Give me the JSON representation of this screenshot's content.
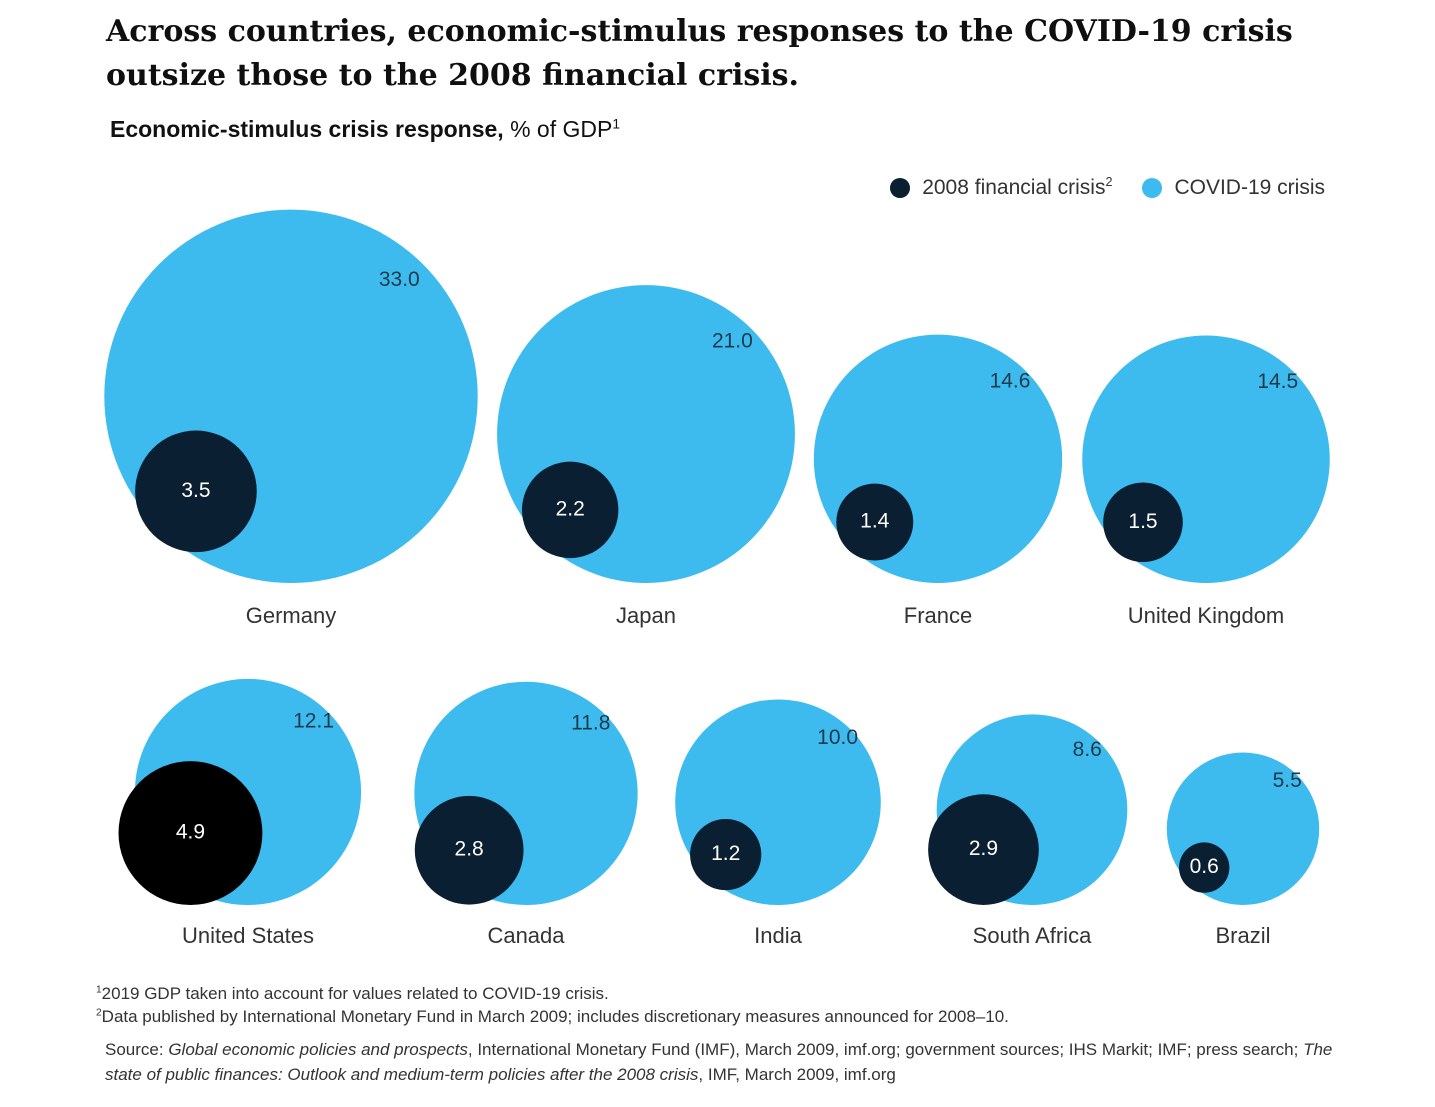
{
  "title": "Across countries, economic-stimulus responses to the COVID-19 crisis outsize those to the 2008 financial crisis.",
  "subtitle": {
    "bold": "Economic-stimulus crisis response,",
    "unit": " % of GDP",
    "note": "1"
  },
  "legend": [
    {
      "label": "2008 financial crisis",
      "note": "2",
      "color": "#0b1f33"
    },
    {
      "label": "COVID-19 crisis",
      "note": "",
      "color": "#3dbbef"
    }
  ],
  "chart_data": {
    "type": "bubble",
    "series": [
      {
        "name": "2008 financial crisis",
        "values": [
          3.5,
          2.2,
          1.4,
          1.5,
          4.9,
          2.8,
          1.2,
          2.9,
          0.6
        ]
      },
      {
        "name": "COVID-19 crisis",
        "values": [
          33.0,
          21.0,
          14.6,
          14.5,
          12.1,
          11.8,
          10.0,
          8.6,
          5.5
        ]
      }
    ],
    "categories": [
      "Germany",
      "Japan",
      "France",
      "United Kingdom",
      "United States",
      "Canada",
      "India",
      "South Africa",
      "Brazil"
    ],
    "countries": [
      {
        "name": "Germany",
        "crisis_2008": "3.5",
        "covid": "33.0"
      },
      {
        "name": "Japan",
        "crisis_2008": "2.2",
        "covid": "21.0"
      },
      {
        "name": "France",
        "crisis_2008": "1.4",
        "covid": "14.6"
      },
      {
        "name": "United Kingdom",
        "crisis_2008": "1.5",
        "covid": "14.5"
      },
      {
        "name": "United States",
        "crisis_2008": "4.9",
        "covid": "12.1"
      },
      {
        "name": "Canada",
        "crisis_2008": "2.8",
        "covid": "11.8"
      },
      {
        "name": "India",
        "crisis_2008": "1.2",
        "covid": "10.0"
      },
      {
        "name": "South Africa",
        "crisis_2008": "2.9",
        "covid": "8.6"
      },
      {
        "name": "Brazil",
        "crisis_2008": "0.6",
        "covid": "5.5"
      }
    ],
    "colors": {
      "covid": "#3dbbef",
      "crisis_2008": "#0b1f33",
      "united_states_2008": "#000000"
    }
  },
  "footnotes": [
    {
      "mark": "1",
      "text": "2019 GDP taken into account for values related to COVID-19 crisis."
    },
    {
      "mark": "2",
      "text": "Data published by International Monetary Fund in March 2009; includes discretionary measures announced for 2008–10."
    }
  ],
  "source": {
    "prefix": "Source: ",
    "title1": "Global economic policies and prospects",
    "mid": ", International Monetary Fund (IMF), March 2009, imf.org; government sources; IHS Markit; IMF; press search; ",
    "title2": "The state of public finances: Outlook and medium-term policies after the 2008 crisis",
    "suffix": ", IMF, March 2009, imf.org"
  }
}
